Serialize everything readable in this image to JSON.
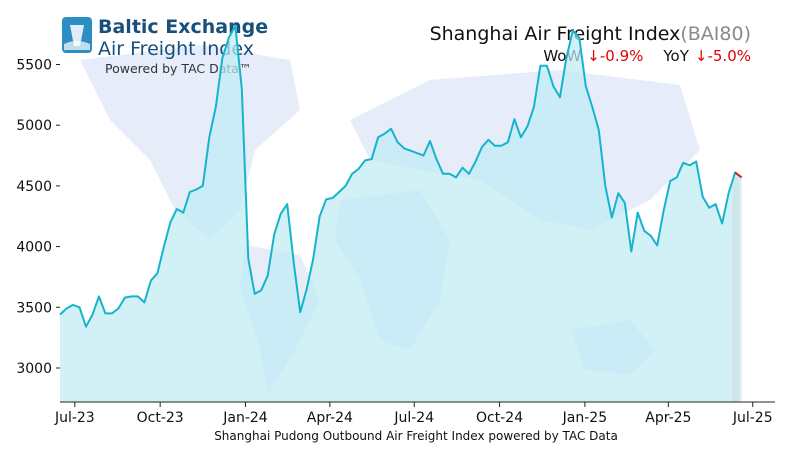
{
  "header": {
    "brand_line1": "Baltic Exchange",
    "brand_line2": "Air Freight Index",
    "brand_line3": "Powered by TAC Data™",
    "title": "Shanghai Air Freight Index",
    "title_code": "(BAI80)",
    "wow_label": "WoW",
    "wow_value": "↓-0.9%",
    "yoy_label": "YoY",
    "yoy_value": "↓-5.0%"
  },
  "footer": {
    "caption": "Shanghai Pudong Outbound Air Freight Index powered by TAC Data"
  },
  "colors": {
    "line": "#16b4cc",
    "fill": "#bfecf4",
    "highlight": "#f08080",
    "brand": "#17507c",
    "negative": "#e00000"
  },
  "chart_data": {
    "type": "area",
    "title": "Shanghai Air Freight Index",
    "xlabel": "Shanghai Pudong Outbound Air Freight Index powered by TAC Data",
    "ylabel": "",
    "x_range": [
      "2023-06-15",
      "2025-07-25"
    ],
    "ylim": [
      2720,
      5850
    ],
    "grid": false,
    "x_ticks": [
      {
        "date": "2023-07-01",
        "label": "Jul-23"
      },
      {
        "date": "2023-10-01",
        "label": "Oct-23"
      },
      {
        "date": "2024-01-01",
        "label": "Jan-24"
      },
      {
        "date": "2024-04-01",
        "label": "Apr-24"
      },
      {
        "date": "2024-07-01",
        "label": "Jul-24"
      },
      {
        "date": "2024-10-01",
        "label": "Oct-24"
      },
      {
        "date": "2025-01-01",
        "label": "Jan-25"
      },
      {
        "date": "2025-04-01",
        "label": "Apr-25"
      },
      {
        "date": "2025-07-01",
        "label": "Jul-25"
      }
    ],
    "y_ticks": [
      3000,
      3500,
      4000,
      4500,
      5000,
      5500
    ],
    "highlight_range": [
      "2025-06-09",
      "2025-06-16"
    ],
    "series": [
      {
        "points": [
          [
            "2023-06-15",
            3440
          ],
          [
            "2023-06-22",
            3490
          ],
          [
            "2023-06-29",
            3520
          ],
          [
            "2023-07-06",
            3500
          ],
          [
            "2023-07-13",
            3340
          ],
          [
            "2023-07-20",
            3440
          ],
          [
            "2023-07-27",
            3590
          ],
          [
            "2023-08-03",
            3450
          ],
          [
            "2023-08-10",
            3450
          ],
          [
            "2023-08-17",
            3490
          ],
          [
            "2023-08-24",
            3580
          ],
          [
            "2023-08-31",
            3590
          ],
          [
            "2023-09-07",
            3590
          ],
          [
            "2023-09-14",
            3540
          ],
          [
            "2023-09-21",
            3720
          ],
          [
            "2023-09-28",
            3780
          ],
          [
            "2023-10-05",
            4000
          ],
          [
            "2023-10-12",
            4200
          ],
          [
            "2023-10-19",
            4310
          ],
          [
            "2023-10-26",
            4280
          ],
          [
            "2023-11-02",
            4450
          ],
          [
            "2023-11-09",
            4470
          ],
          [
            "2023-11-16",
            4500
          ],
          [
            "2023-11-23",
            4900
          ],
          [
            "2023-11-30",
            5150
          ],
          [
            "2023-12-07",
            5550
          ],
          [
            "2023-12-14",
            5720
          ],
          [
            "2023-12-21",
            5820
          ],
          [
            "2023-12-28",
            5300
          ],
          [
            "2024-01-04",
            3900
          ],
          [
            "2024-01-11",
            3610
          ],
          [
            "2024-01-18",
            3640
          ],
          [
            "2024-01-25",
            3760
          ],
          [
            "2024-02-01",
            4100
          ],
          [
            "2024-02-08",
            4270
          ],
          [
            "2024-02-15",
            4350
          ],
          [
            "2024-02-22",
            3870
          ],
          [
            "2024-02-29",
            3460
          ],
          [
            "2024-03-07",
            3650
          ],
          [
            "2024-03-14",
            3900
          ],
          [
            "2024-03-21",
            4250
          ],
          [
            "2024-03-28",
            4390
          ],
          [
            "2024-04-04",
            4400
          ],
          [
            "2024-04-11",
            4450
          ],
          [
            "2024-04-18",
            4500
          ],
          [
            "2024-04-25",
            4600
          ],
          [
            "2024-05-02",
            4640
          ],
          [
            "2024-05-09",
            4710
          ],
          [
            "2024-05-16",
            4720
          ],
          [
            "2024-05-23",
            4900
          ],
          [
            "2024-05-30",
            4930
          ],
          [
            "2024-06-06",
            4970
          ],
          [
            "2024-06-13",
            4860
          ],
          [
            "2024-06-20",
            4810
          ],
          [
            "2024-06-27",
            4790
          ],
          [
            "2024-07-04",
            4770
          ],
          [
            "2024-07-11",
            4750
          ],
          [
            "2024-07-18",
            4870
          ],
          [
            "2024-07-25",
            4720
          ],
          [
            "2024-08-01",
            4600
          ],
          [
            "2024-08-08",
            4600
          ],
          [
            "2024-08-15",
            4570
          ],
          [
            "2024-08-22",
            4650
          ],
          [
            "2024-08-29",
            4600
          ],
          [
            "2024-09-05",
            4700
          ],
          [
            "2024-09-12",
            4820
          ],
          [
            "2024-09-19",
            4880
          ],
          [
            "2024-09-26",
            4830
          ],
          [
            "2024-10-03",
            4830
          ],
          [
            "2024-10-10",
            4860
          ],
          [
            "2024-10-17",
            5050
          ],
          [
            "2024-10-24",
            4900
          ],
          [
            "2024-10-31",
            4990
          ],
          [
            "2024-11-07",
            5150
          ],
          [
            "2024-11-14",
            5490
          ],
          [
            "2024-11-21",
            5490
          ],
          [
            "2024-11-28",
            5320
          ],
          [
            "2024-12-05",
            5230
          ],
          [
            "2024-12-12",
            5550
          ],
          [
            "2024-12-19",
            5780
          ],
          [
            "2024-12-26",
            5720
          ],
          [
            "2025-01-02",
            5320
          ],
          [
            "2025-01-09",
            5150
          ],
          [
            "2025-01-16",
            4960
          ],
          [
            "2025-01-23",
            4500
          ],
          [
            "2025-01-30",
            4240
          ],
          [
            "2025-02-06",
            4440
          ],
          [
            "2025-02-13",
            4360
          ],
          [
            "2025-02-20",
            3960
          ],
          [
            "2025-02-27",
            4280
          ],
          [
            "2025-03-06",
            4130
          ],
          [
            "2025-03-13",
            4090
          ],
          [
            "2025-03-20",
            4010
          ],
          [
            "2025-03-27",
            4300
          ],
          [
            "2025-04-03",
            4540
          ],
          [
            "2025-04-10",
            4570
          ],
          [
            "2025-04-17",
            4690
          ],
          [
            "2025-04-24",
            4670
          ],
          [
            "2025-05-01",
            4700
          ],
          [
            "2025-05-08",
            4410
          ],
          [
            "2025-05-15",
            4320
          ],
          [
            "2025-05-22",
            4350
          ],
          [
            "2025-05-29",
            4190
          ],
          [
            "2025-06-05",
            4440
          ],
          [
            "2025-06-12",
            4610
          ],
          [
            "2025-06-19",
            4570
          ]
        ]
      }
    ]
  }
}
